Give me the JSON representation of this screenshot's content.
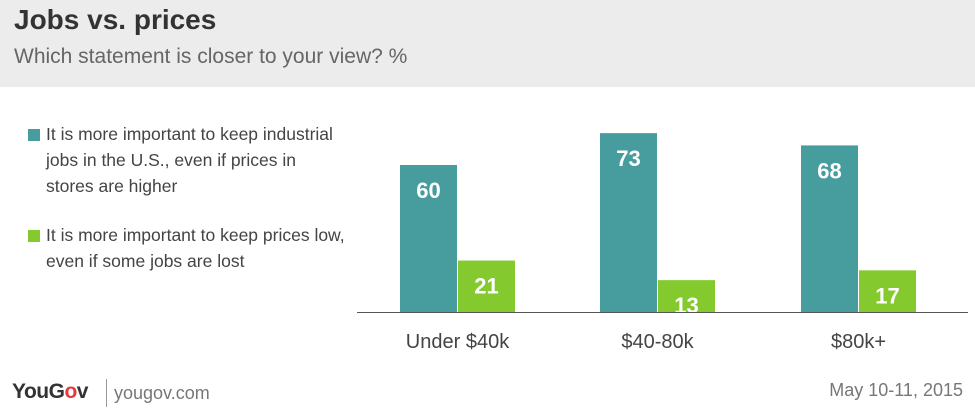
{
  "header": {
    "title": "Jobs vs. prices",
    "subtitle": "Which statement is closer to your view? %"
  },
  "footer": {
    "logo_main": "YouGov",
    "url": "yougov.com",
    "date": "May 10-11, 2015"
  },
  "colors": {
    "series1": "#479c9e",
    "series2": "#84c92d",
    "axis": "#555555"
  },
  "chart_data": {
    "type": "bar",
    "categories": [
      "Under $40k",
      "$40-80k",
      "$80k+"
    ],
    "series": [
      {
        "name": "It is more important to keep industrial jobs in the U.S., even if prices in stores are higher",
        "values": [
          60,
          73,
          68
        ]
      },
      {
        "name": "It is more important to keep prices low, even if some jobs are lost",
        "values": [
          21,
          13,
          17
        ]
      }
    ],
    "title": "Jobs vs. prices",
    "subtitle": "Which statement is closer to your view? %",
    "ylim": [
      0,
      80
    ],
    "grid": false,
    "legend": "left"
  }
}
